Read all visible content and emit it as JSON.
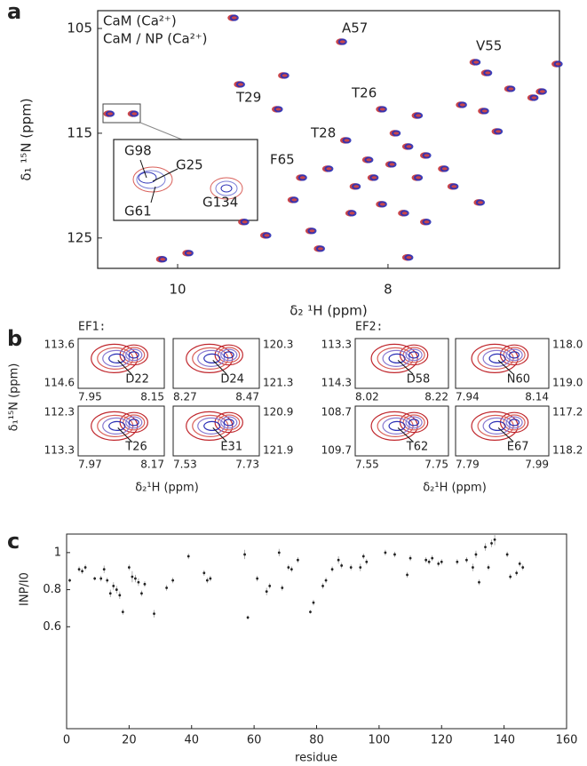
{
  "chart_data": [
    {
      "type": "scatter",
      "panel": "a",
      "xlabel": "δ₂ ¹H (ppm)",
      "ylabel": "δ₁ ¹⁵N (ppm)",
      "xlim": [
        10.76,
        6.37
      ],
      "ylim": [
        127.9,
        103.3
      ],
      "xticks": [
        10,
        8
      ],
      "yticks": [
        105,
        115,
        125
      ],
      "x": [
        10.65,
        10.42,
        9.47,
        8.44,
        7.17,
        9.05,
        8.06,
        8.4,
        8.57,
        7.06,
        6.84,
        6.62,
        6.39,
        6.54,
        7.3,
        7.93,
        7.81,
        7.64,
        8.14,
        8.31,
        7.97,
        7.72,
        7.47,
        7.38,
        8.06,
        7.85,
        7.64,
        8.35,
        8.73,
        8.9,
        8.65,
        9.16,
        9.37,
        6.96,
        7.09,
        7.72,
        8.82,
        8.19,
        9.41,
        8.99,
        10.15,
        9.9,
        7.13,
        7.81
      ],
      "series": [
        {
          "name": "CaM (Ca²⁺)",
          "color": "#c0272d",
          "values": [
            113.14,
            113.14,
            103.98,
            106.27,
            108.22,
            112.71,
            112.71,
            115.68,
            118.39,
            109.24,
            110.76,
            111.61,
            108.39,
            111.02,
            112.29,
            115.0,
            116.27,
            117.12,
            119.24,
            120.08,
            117.97,
            119.24,
            118.39,
            120.08,
            121.78,
            122.63,
            123.47,
            122.63,
            124.32,
            121.36,
            126.02,
            124.75,
            123.47,
            114.83,
            112.88,
            113.31,
            119.24,
            117.54,
            110.34,
            109.49,
            127.03,
            126.44,
            121.61,
            126.86
          ]
        },
        {
          "name": "CaM / NP (Ca²⁺)",
          "color": "#2a2fb5",
          "values": [
            113.14,
            113.14,
            103.98,
            106.27,
            108.22,
            112.71,
            112.71,
            115.68,
            118.39,
            109.24,
            110.76,
            111.61,
            108.39,
            111.02,
            112.29,
            115.0,
            116.27,
            117.12,
            119.24,
            120.08,
            117.97,
            119.24,
            118.39,
            120.08,
            121.78,
            122.63,
            123.47,
            122.63,
            124.32,
            121.36,
            126.02,
            124.75,
            123.47,
            114.83,
            112.88,
            113.31,
            119.24,
            117.54,
            110.34,
            109.49,
            127.03,
            126.44,
            121.61,
            126.86
          ]
        }
      ],
      "annotations": [
        "A57",
        "V55",
        "T29",
        "T26",
        "T28",
        "F65"
      ],
      "inset_labels": [
        "G98",
        "G25",
        "G61",
        "G134"
      ]
    },
    {
      "type": "contour",
      "panel": "b",
      "ylabel": "δ₁¹⁵N (ppm)",
      "groups": [
        {
          "title": "EF1:",
          "xlabel": "δ₂¹H (ppm)",
          "insets": [
            {
              "label": "D22",
              "xticks": [
                7.95,
                8.15
              ],
              "yticks": [
                113.6,
                114.6
              ]
            },
            {
              "label": "D24",
              "xticks": [
                8.27,
                8.47
              ],
              "yticks": [
                120.3,
                121.3
              ]
            },
            {
              "label": "T26",
              "xticks": [
                7.97,
                8.17
              ],
              "yticks": [
                112.3,
                113.3
              ]
            },
            {
              "label": "E31",
              "xticks": [
                7.53,
                7.73
              ],
              "yticks": [
                120.9,
                121.9
              ]
            }
          ]
        },
        {
          "title": "EF2:",
          "xlabel": "δ₂¹H (ppm)",
          "insets": [
            {
              "label": "D58",
              "xticks": [
                8.02,
                8.22
              ],
              "yticks": [
                113.3,
                114.3
              ]
            },
            {
              "label": "N60",
              "xticks": [
                7.94,
                8.14
              ],
              "yticks": [
                {
                  "value": 118,
                  "label": "118.0"
                },
                {
                  "value": 119,
                  "label": "119.0"
                }
              ]
            },
            {
              "label": "T62",
              "xticks": [
                7.55,
                7.75
              ],
              "yticks": [
                108.7,
                109.7
              ]
            },
            {
              "label": "E67",
              "xticks": [
                7.79,
                7.99
              ],
              "yticks": [
                117.2,
                118.2
              ]
            }
          ]
        }
      ]
    },
    {
      "type": "errorscatter",
      "panel": "c",
      "xlabel": "residue",
      "ylabel": "INP/I0",
      "xlim": [
        0,
        160
      ],
      "ylim": [
        0.05,
        1.1
      ],
      "xticks": [
        0,
        20,
        40,
        60,
        80,
        100,
        120,
        140,
        160
      ],
      "yticks": [
        0.6,
        0.8,
        1
      ],
      "color": "#222222",
      "x": [
        1,
        4,
        5,
        6,
        9,
        11,
        12,
        13,
        14,
        15,
        16,
        17,
        18,
        20,
        21,
        22,
        23,
        24,
        25,
        28,
        32,
        34,
        39,
        44,
        45,
        46,
        57,
        58,
        61,
        64,
        65,
        68,
        69,
        71,
        72,
        74,
        78,
        79,
        82,
        83,
        85,
        87,
        88,
        91,
        94,
        95,
        96,
        102,
        105,
        109,
        110,
        115,
        116,
        117,
        119,
        120,
        125,
        128,
        130,
        131,
        132,
        134,
        135,
        136,
        137,
        141,
        142,
        144,
        145,
        146
      ],
      "values": [
        0.85,
        0.91,
        0.9,
        0.92,
        0.86,
        0.86,
        0.91,
        0.85,
        0.78,
        0.82,
        0.8,
        0.77,
        0.68,
        0.92,
        0.87,
        0.86,
        0.84,
        0.78,
        0.83,
        0.67,
        0.81,
        0.85,
        0.98,
        0.89,
        0.85,
        0.86,
        0.99,
        0.65,
        0.86,
        0.79,
        0.82,
        1.0,
        0.81,
        0.92,
        0.91,
        0.96,
        0.68,
        0.73,
        0.82,
        0.85,
        0.91,
        0.96,
        0.93,
        0.92,
        0.92,
        0.98,
        0.95,
        1.0,
        0.99,
        0.88,
        0.97,
        0.96,
        0.95,
        0.97,
        0.94,
        0.95,
        0.95,
        0.96,
        0.92,
        0.99,
        0.84,
        1.03,
        0.92,
        1.05,
        1.07,
        0.99,
        0.87,
        0.89,
        0.94,
        0.92
      ],
      "errors": [
        0.01,
        0.015,
        0.015,
        0.015,
        0.01,
        0.015,
        0.02,
        0.015,
        0.02,
        0.02,
        0.02,
        0.02,
        0.015,
        0.015,
        0.03,
        0.02,
        0.02,
        0.015,
        0.015,
        0.02,
        0.015,
        0.015,
        0.015,
        0.015,
        0.015,
        0.015,
        0.025,
        0.01,
        0.015,
        0.02,
        0.015,
        0.02,
        0.015,
        0.015,
        0.015,
        0.015,
        0.01,
        0.015,
        0.015,
        0.015,
        0.015,
        0.02,
        0.015,
        0.015,
        0.02,
        0.015,
        0.015,
        0.015,
        0.015,
        0.015,
        0.015,
        0.015,
        0.015,
        0.015,
        0.015,
        0.015,
        0.015,
        0.015,
        0.02,
        0.02,
        0.015,
        0.02,
        0.015,
        0.02,
        0.03,
        0.015,
        0.015,
        0.015,
        0.015,
        0.015
      ]
    }
  ]
}
